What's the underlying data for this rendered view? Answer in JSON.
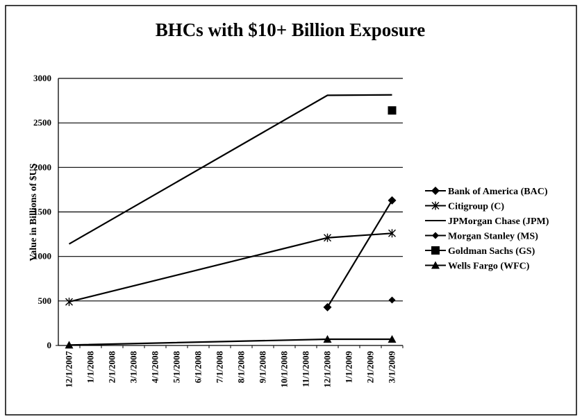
{
  "chart_data": {
    "type": "line",
    "title": "BHCs with $10+ Billion Exposure",
    "xlabel": "",
    "ylabel": "Value in Billions of $US",
    "x": [
      "12/1/2007",
      "1/1/2008",
      "2/1/2008",
      "3/1/2008",
      "4/1/2008",
      "5/1/2008",
      "6/1/2008",
      "7/1/2008",
      "8/1/2008",
      "9/1/2008",
      "10/1/2008",
      "11/1/2008",
      "12/1/2008",
      "1/1/2009",
      "2/1/2009",
      "3/1/2009"
    ],
    "ylim": [
      0,
      3000
    ],
    "yticks": [
      0,
      500,
      1000,
      1500,
      2000,
      2500,
      3000
    ],
    "grid": true,
    "legend_position": "right",
    "series": [
      {
        "name": "Bank of America (BAC)",
        "marker": "diamond",
        "color": "#000000",
        "points": [
          [
            "12/1/2008",
            430
          ],
          [
            "3/1/2009",
            1630
          ]
        ]
      },
      {
        "name": "Citigroup (C)",
        "marker": "asterisk",
        "color": "#000000",
        "points": [
          [
            "12/1/2007",
            490
          ],
          [
            "12/1/2008",
            1210
          ],
          [
            "3/1/2009",
            1260
          ]
        ]
      },
      {
        "name": "JPMorgan Chase (JPM)",
        "marker": "none",
        "color": "#000000",
        "points": [
          [
            "12/1/2007",
            1140
          ],
          [
            "12/1/2008",
            2810
          ],
          [
            "3/1/2009",
            2815
          ]
        ]
      },
      {
        "name": "Morgan Stanley (MS)",
        "marker": "small-diamond",
        "color": "#000000",
        "points": [
          [
            "3/1/2009",
            510
          ]
        ]
      },
      {
        "name": "Goldman Sachs (GS)",
        "marker": "square",
        "color": "#000000",
        "points": [
          [
            "3/1/2009",
            2640
          ]
        ]
      },
      {
        "name": "Wells Fargo (WFC)",
        "marker": "triangle",
        "color": "#000000",
        "points": [
          [
            "12/1/2007",
            5
          ],
          [
            "12/1/2008",
            70
          ],
          [
            "3/1/2009",
            70
          ]
        ]
      }
    ]
  }
}
